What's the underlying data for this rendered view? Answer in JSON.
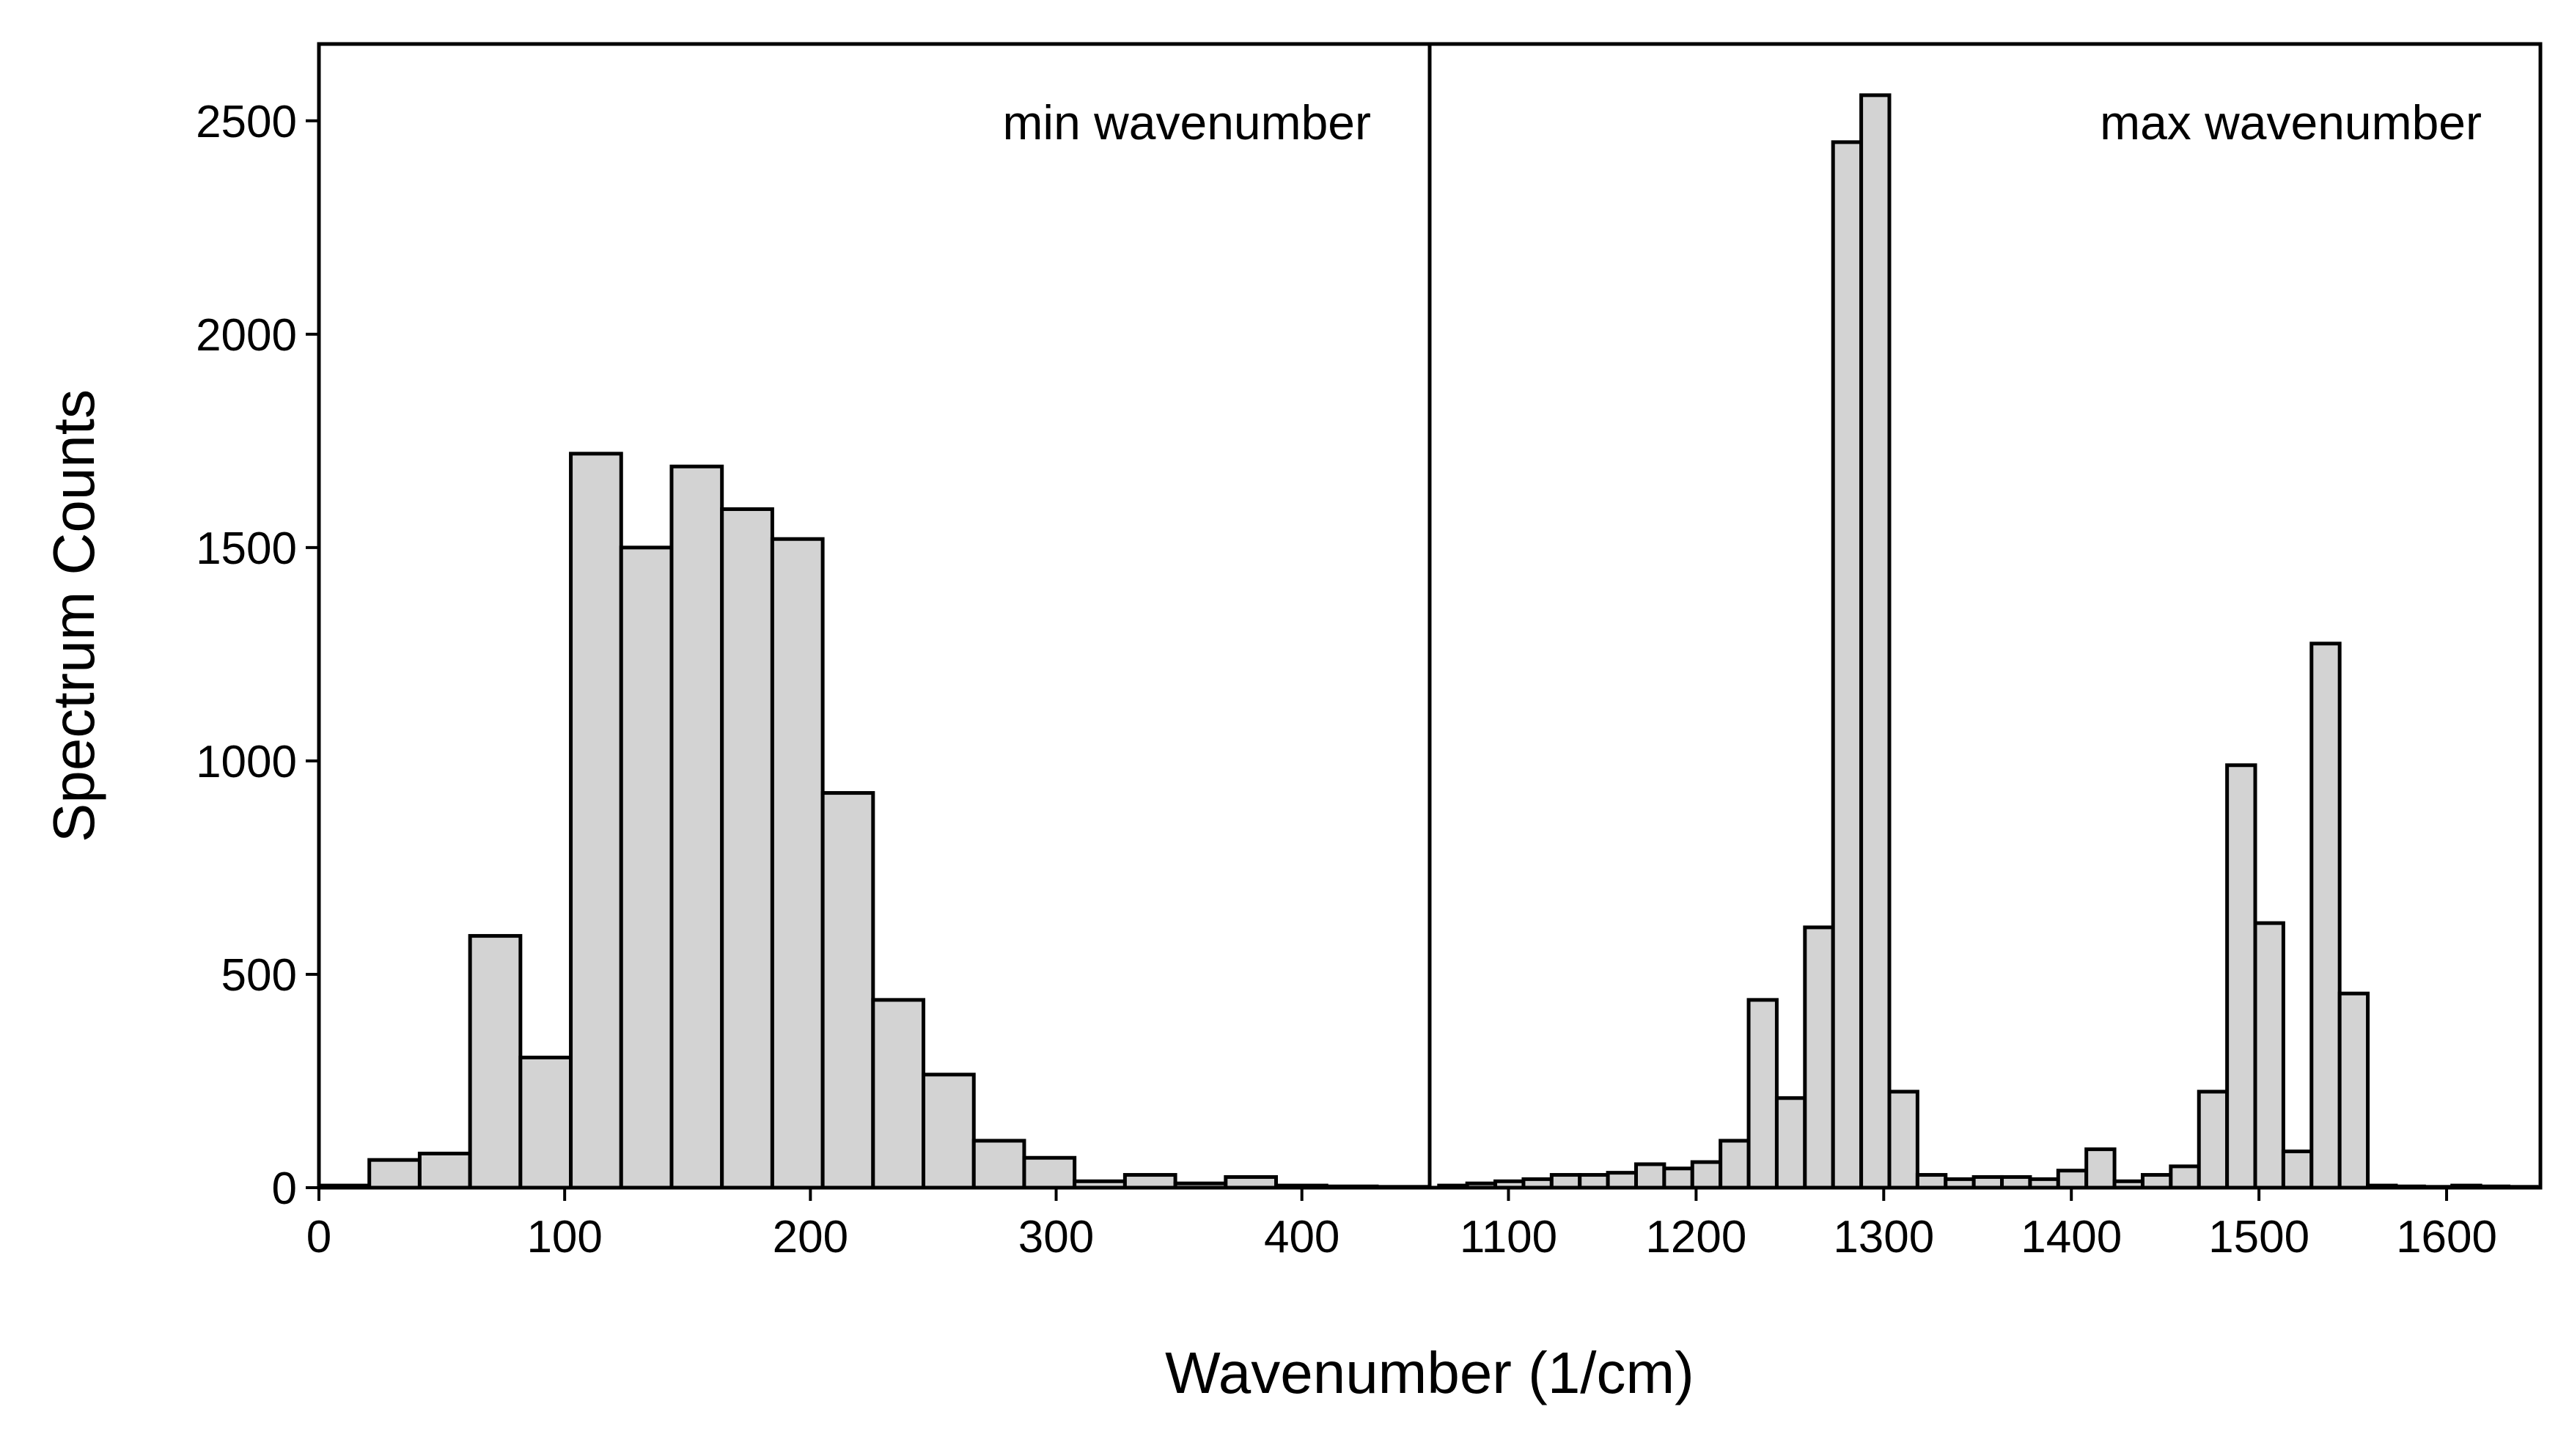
{
  "chart_data": [
    {
      "type": "bar",
      "panel": "left",
      "annotation": "min wavenumber",
      "ylabel": "Spectrum Counts",
      "xlim": [
        0,
        452
      ],
      "ylim": [
        0,
        2680
      ],
      "xticks": [
        0,
        100,
        200,
        300,
        400
      ],
      "yticks": [
        0,
        500,
        1000,
        1500,
        2000,
        2500
      ],
      "bin_width": 20.5,
      "bin_starts": [
        0,
        20.5,
        41,
        61.5,
        82,
        102.5,
        123,
        143.5,
        164,
        184.5,
        205,
        225.5,
        246,
        266.5,
        287,
        307.5,
        328,
        348.5,
        369,
        389.5,
        410,
        430.5
      ],
      "values": [
        5,
        65,
        80,
        590,
        305,
        1720,
        1500,
        1690,
        1590,
        1520,
        925,
        440,
        265,
        110,
        70,
        15,
        30,
        10,
        25,
        5,
        3,
        2
      ]
    },
    {
      "type": "bar",
      "panel": "right",
      "annotation": "max wavenumber",
      "xlim": [
        1058,
        1650
      ],
      "ylim": [
        0,
        2680
      ],
      "xticks": [
        1100,
        1200,
        1300,
        1400,
        1500,
        1600
      ],
      "bin_width": 15,
      "bin_starts": [
        1063,
        1078,
        1093,
        1108,
        1123,
        1138,
        1153,
        1168,
        1183,
        1198,
        1213,
        1228,
        1243,
        1258,
        1273,
        1288,
        1303,
        1318,
        1333,
        1348,
        1363,
        1378,
        1393,
        1408,
        1423,
        1438,
        1453,
        1468,
        1483,
        1498,
        1513,
        1528,
        1543,
        1558,
        1573,
        1588,
        1603,
        1618,
        1633
      ],
      "values": [
        5,
        10,
        15,
        20,
        30,
        30,
        35,
        55,
        45,
        60,
        110,
        440,
        210,
        610,
        2450,
        2560,
        225,
        30,
        20,
        25,
        25,
        20,
        40,
        90,
        15,
        30,
        50,
        225,
        990,
        620,
        85,
        1275,
        455,
        5,
        3,
        2,
        5,
        3,
        2
      ]
    }
  ],
  "xlabel": "Wavenumber (1/cm)"
}
